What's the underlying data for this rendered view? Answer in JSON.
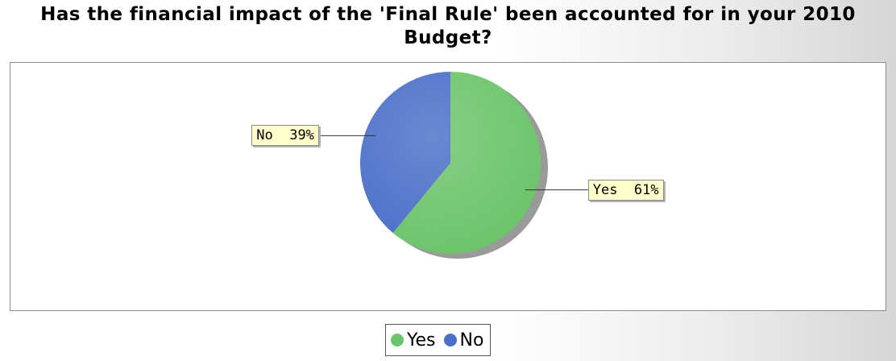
{
  "chart_data": {
    "type": "pie",
    "title": "Has the financial impact of the 'Final Rule' been accounted for in your 2010 Budget?",
    "slices": [
      {
        "name": "Yes",
        "value": 61,
        "label": "Yes  61%",
        "color": "#6cc46a"
      },
      {
        "name": "No",
        "value": 39,
        "label": "No  39%",
        "color": "#4a6fc8"
      }
    ],
    "legend": {
      "placement": "bottom",
      "entries": [
        "Yes",
        "No"
      ]
    },
    "label_style": "callout",
    "shadow": true
  }
}
